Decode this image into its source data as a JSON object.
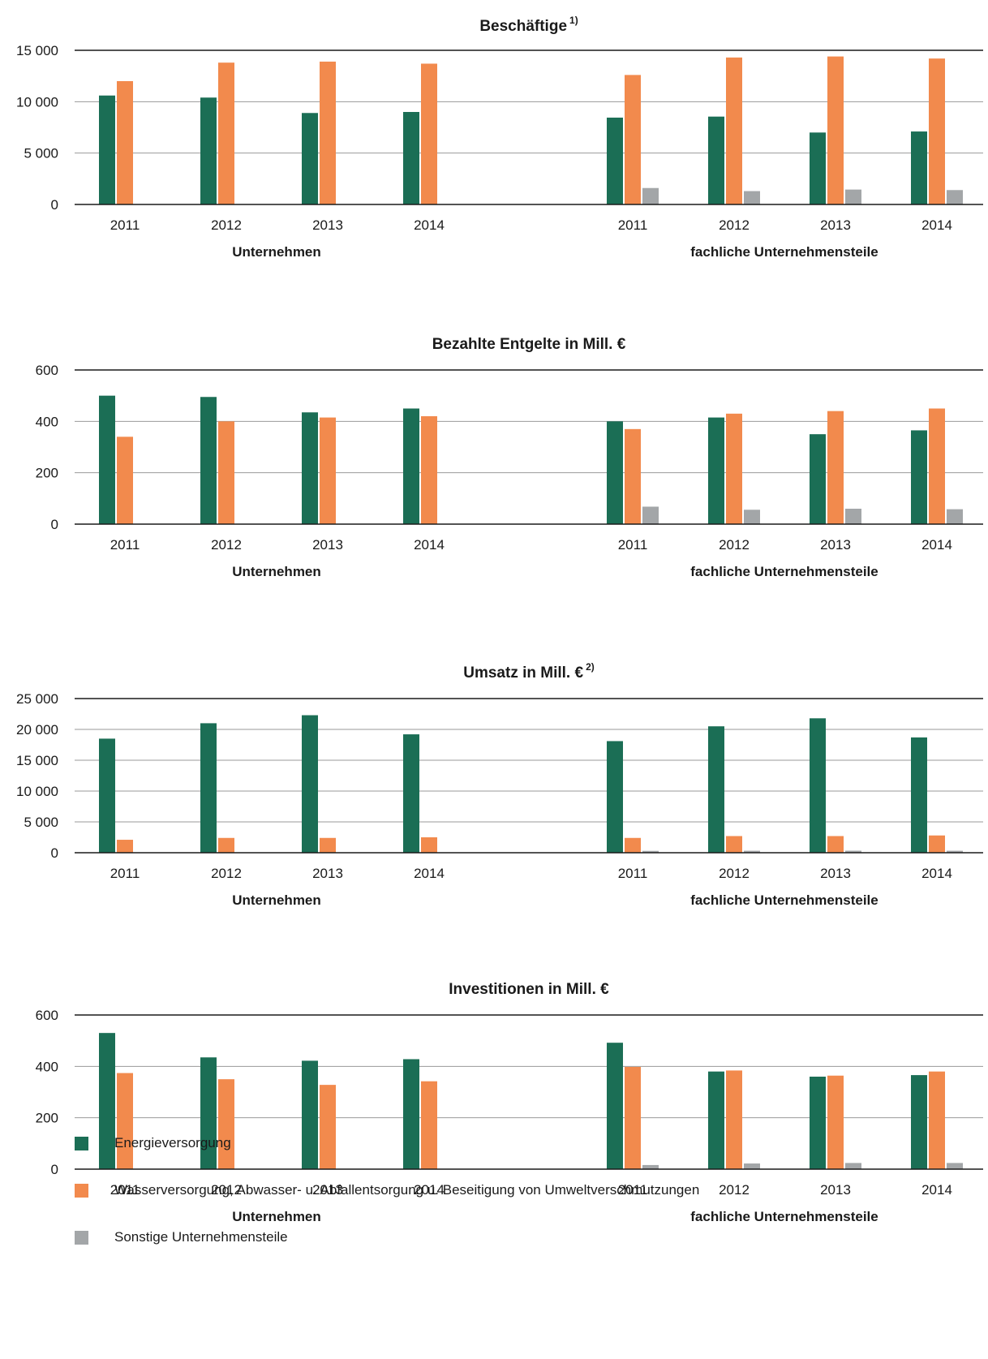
{
  "chart_data": [
    {
      "type": "bar",
      "title": "Beschäftige",
      "title_sup": "1)",
      "ylim": [
        0,
        15000
      ],
      "yticks": [
        "0",
        "5 000",
        "10 000",
        "15 000"
      ],
      "ytick_values": [
        0,
        5000,
        10000,
        15000
      ],
      "groups": [
        {
          "label": "Unternehmen",
          "categories": [
            "2011",
            "2012",
            "2013",
            "2014"
          ]
        },
        {
          "label": "fachliche Unternehmensteile",
          "categories": [
            "2011",
            "2012",
            "2013",
            "2014"
          ]
        }
      ],
      "series": [
        {
          "name": "Energieversorgung",
          "values": [
            10600,
            10400,
            8900,
            9000,
            8450,
            8550,
            7000,
            7100
          ]
        },
        {
          "name": "Wasserversorgung, Abwasser- u. Abfallentsorgung u. Beseitigung von Umweltverschmutzungen",
          "values": [
            12000,
            13800,
            13900,
            13700,
            12600,
            14300,
            14400,
            14200
          ]
        },
        {
          "name": "Sonstige Unternehmensteile",
          "values": [
            null,
            null,
            null,
            null,
            1600,
            1300,
            1450,
            1400
          ]
        }
      ],
      "grid": true
    },
    {
      "type": "bar",
      "title": "Bezahlte Entgelte in Mill. €",
      "title_sup": "",
      "ylim": [
        0,
        600
      ],
      "yticks": [
        "0",
        "200",
        "400",
        "600"
      ],
      "ytick_values": [
        0,
        200,
        400,
        600
      ],
      "groups": [
        {
          "label": "Unternehmen",
          "categories": [
            "2011",
            "2012",
            "2013",
            "2014"
          ]
        },
        {
          "label": "fachliche Unternehmensteile",
          "categories": [
            "2011",
            "2012",
            "2013",
            "2014"
          ]
        }
      ],
      "series": [
        {
          "name": "Energieversorgung",
          "values": [
            500,
            495,
            435,
            450,
            400,
            415,
            350,
            365
          ]
        },
        {
          "name": "Wasserversorgung, Abwasser- u. Abfallentsorgung u. Beseitigung von Umweltverschmutzungen",
          "values": [
            340,
            400,
            415,
            420,
            370,
            430,
            440,
            450
          ]
        },
        {
          "name": "Sonstige Unternehmensteile",
          "values": [
            null,
            null,
            null,
            null,
            68,
            56,
            60,
            58
          ]
        }
      ],
      "grid": true
    },
    {
      "type": "bar",
      "title": "Umsatz in Mill. €",
      "title_sup": "2)",
      "ylim": [
        0,
        25000
      ],
      "yticks": [
        "0",
        "5 000",
        "10 000",
        "15 000",
        "20 000",
        "25 000"
      ],
      "ytick_values": [
        0,
        5000,
        10000,
        15000,
        20000,
        25000
      ],
      "groups": [
        {
          "label": "Unternehmen",
          "categories": [
            "2011",
            "2012",
            "2013",
            "2014"
          ]
        },
        {
          "label": "fachliche Unternehmensteile",
          "categories": [
            "2011",
            "2012",
            "2013",
            "2014"
          ]
        }
      ],
      "series": [
        {
          "name": "Energieversorgung",
          "values": [
            18500,
            21000,
            22300,
            19200,
            18100,
            20500,
            21800,
            18700
          ]
        },
        {
          "name": "Wasserversorgung, Abwasser- u. Abfallentsorgung u. Beseitigung von Umweltverschmutzungen",
          "values": [
            2100,
            2400,
            2400,
            2500,
            2400,
            2700,
            2700,
            2800
          ]
        },
        {
          "name": "Sonstige Unternehmensteile",
          "values": [
            null,
            null,
            null,
            null,
            300,
            320,
            330,
            320
          ]
        }
      ],
      "grid": true
    },
    {
      "type": "bar",
      "title": "Investitionen in Mill. €",
      "title_sup": "",
      "ylim": [
        0,
        600
      ],
      "yticks": [
        "0",
        "200",
        "400",
        "600"
      ],
      "ytick_values": [
        0,
        200,
        400,
        600
      ],
      "groups": [
        {
          "label": "Unternehmen",
          "categories": [
            "2011",
            "2012",
            "2013",
            "2014"
          ]
        },
        {
          "label": "fachliche Unternehmensteile",
          "categories": [
            "2011",
            "2012",
            "2013",
            "2014"
          ]
        }
      ],
      "series": [
        {
          "name": "Energieversorgung",
          "values": [
            530,
            435,
            422,
            428,
            492,
            380,
            360,
            366
          ]
        },
        {
          "name": "Wasserversorgung, Abwasser- u. Abfallentsorgung u. Beseitigung von Umweltverschmutzungen",
          "values": [
            374,
            350,
            328,
            342,
            398,
            384,
            364,
            380
          ]
        },
        {
          "name": "Sonstige Unternehmensteile",
          "values": [
            null,
            null,
            null,
            null,
            16,
            22,
            24,
            24
          ]
        }
      ],
      "grid": true
    }
  ],
  "legend": {
    "items": [
      {
        "label": "Energieversorgung",
        "color": "#1b6e55"
      },
      {
        "label": "Wasserversorgung, Abwasser- u. Abfallentsorgung u. Beseitigung von Umweltverschmutzungen",
        "color": "#f28a4d"
      },
      {
        "label": "Sonstige Unternehmensteile",
        "color": "#a3a6a8"
      }
    ]
  }
}
